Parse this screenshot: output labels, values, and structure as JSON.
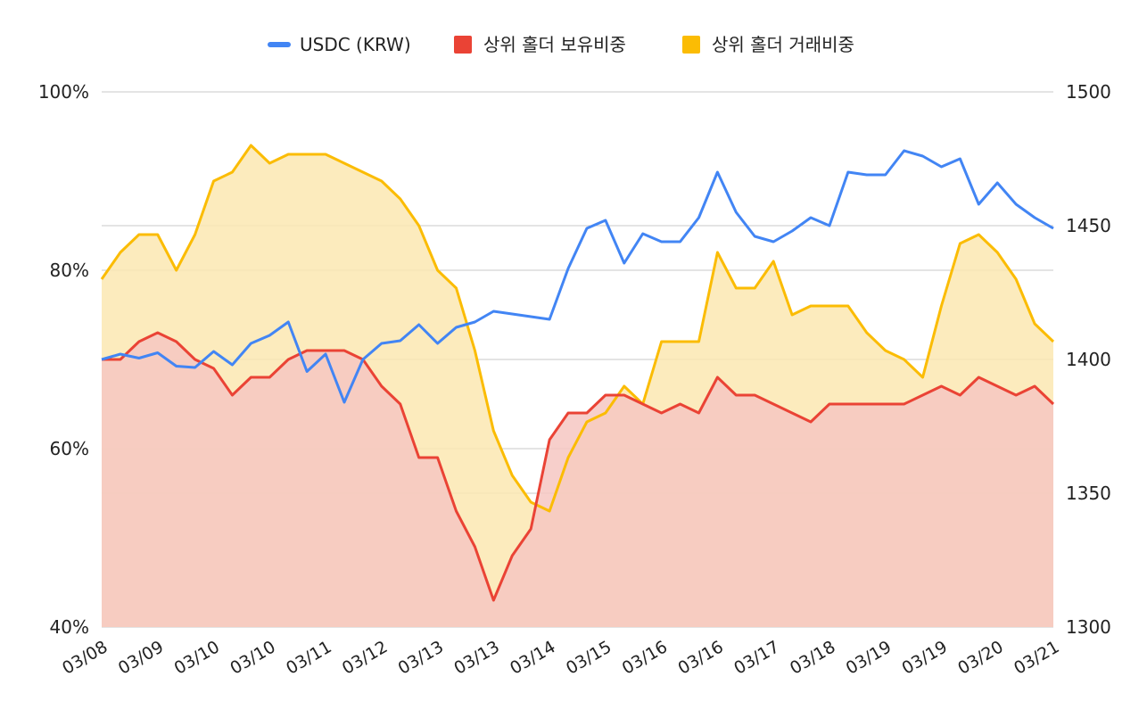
{
  "chart_data": {
    "type": "area",
    "legend": {
      "position": "top",
      "items": [
        {
          "label": "USDC (KRW)",
          "color": "#4285f4",
          "marker": "line"
        },
        {
          "label": "상위 홀더 보유비중",
          "color": "#ea4335",
          "marker": "square"
        },
        {
          "label": "상위 홀더 거래비중",
          "color": "#fbbc04",
          "marker": "square"
        }
      ]
    },
    "left_axis": {
      "range": [
        40,
        100
      ],
      "ticks": [
        "40%",
        "60%",
        "80%",
        "100%"
      ],
      "tick_values": [
        40,
        60,
        80,
        100
      ]
    },
    "right_axis": {
      "range": [
        1300,
        1500
      ],
      "ticks": [
        "1300",
        "1350",
        "1400",
        "1450",
        "1500"
      ],
      "tick_values": [
        1300,
        1350,
        1400,
        1450,
        1500
      ]
    },
    "x_labels": [
      "03/08",
      "03/09",
      "03/10",
      "03/10",
      "03/11",
      "03/12",
      "03/13",
      "03/13",
      "03/14",
      "03/15",
      "03/16",
      "03/16",
      "03/17",
      "03/18",
      "03/19",
      "03/19",
      "03/20",
      "03/21"
    ],
    "grid": true,
    "series": [
      {
        "name": "상위 홀더 거래비중",
        "axis": "left",
        "kind": "area",
        "color": "#fbbc04",
        "fill": "#fce8b2",
        "values": [
          79,
          82,
          84,
          84,
          80,
          84,
          90,
          91,
          94,
          92,
          93,
          93,
          93,
          92,
          91,
          90,
          88,
          85,
          80,
          78,
          71,
          62,
          57,
          54,
          53,
          59,
          63,
          64,
          67,
          65,
          72,
          72,
          72,
          82,
          78,
          78,
          81,
          75,
          76,
          76,
          76,
          73,
          71,
          70,
          68,
          76,
          83,
          84,
          82,
          79,
          74,
          72
        ]
      },
      {
        "name": "상위 홀더 보유비중",
        "axis": "left",
        "kind": "area",
        "color": "#ea4335",
        "fill": "#f6c7c2",
        "values": [
          70,
          70,
          72,
          73,
          72,
          70,
          69,
          66,
          68,
          68,
          70,
          71,
          71,
          71,
          70,
          67,
          65,
          59,
          59,
          53,
          49,
          43,
          48,
          51,
          61,
          64,
          64,
          66,
          66,
          65,
          64,
          65,
          64,
          68,
          66,
          66,
          65,
          64,
          63,
          65,
          65,
          65,
          65,
          65,
          66,
          67,
          66,
          68,
          67,
          66,
          67,
          65
        ]
      },
      {
        "name": "USDC (KRW)",
        "axis": "right",
        "kind": "line",
        "color": "#4285f4",
        "points": [
          [
            0,
            1400
          ],
          [
            1,
            1402
          ],
          [
            2,
            1400.5
          ],
          [
            3,
            1402.5
          ],
          [
            4,
            1397.5
          ],
          [
            5,
            1397
          ],
          [
            6,
            1403
          ],
          [
            7,
            1398
          ],
          [
            8,
            1406
          ],
          [
            9,
            1409
          ],
          [
            10,
            1414
          ],
          [
            11,
            1395.5
          ],
          [
            12,
            1402
          ],
          [
            13,
            1384
          ],
          [
            14,
            1400
          ],
          [
            15,
            1406
          ],
          [
            16,
            1407
          ],
          [
            17,
            1413
          ],
          [
            18,
            1406
          ],
          [
            19,
            1412
          ],
          [
            20,
            1414
          ],
          [
            21,
            1418
          ],
          [
            24,
            1415
          ],
          [
            25,
            1434
          ],
          [
            26,
            1449
          ],
          [
            27,
            1452
          ],
          [
            28,
            1436
          ],
          [
            29,
            1447
          ],
          [
            30,
            1444
          ],
          [
            31,
            1444
          ],
          [
            32,
            1453
          ],
          [
            33,
            1470
          ],
          [
            34,
            1455
          ],
          [
            35,
            1446
          ],
          [
            36,
            1444
          ],
          [
            37,
            1448
          ],
          [
            38,
            1453
          ],
          [
            39,
            1450
          ],
          [
            40,
            1470
          ],
          [
            41,
            1469
          ],
          [
            42,
            1469
          ],
          [
            43,
            1478
          ],
          [
            44,
            1476
          ],
          [
            45,
            1472
          ],
          [
            46,
            1475
          ],
          [
            47,
            1458
          ],
          [
            48,
            1466
          ],
          [
            49,
            1458
          ],
          [
            50,
            1453
          ],
          [
            51,
            1449
          ]
        ]
      }
    ]
  }
}
